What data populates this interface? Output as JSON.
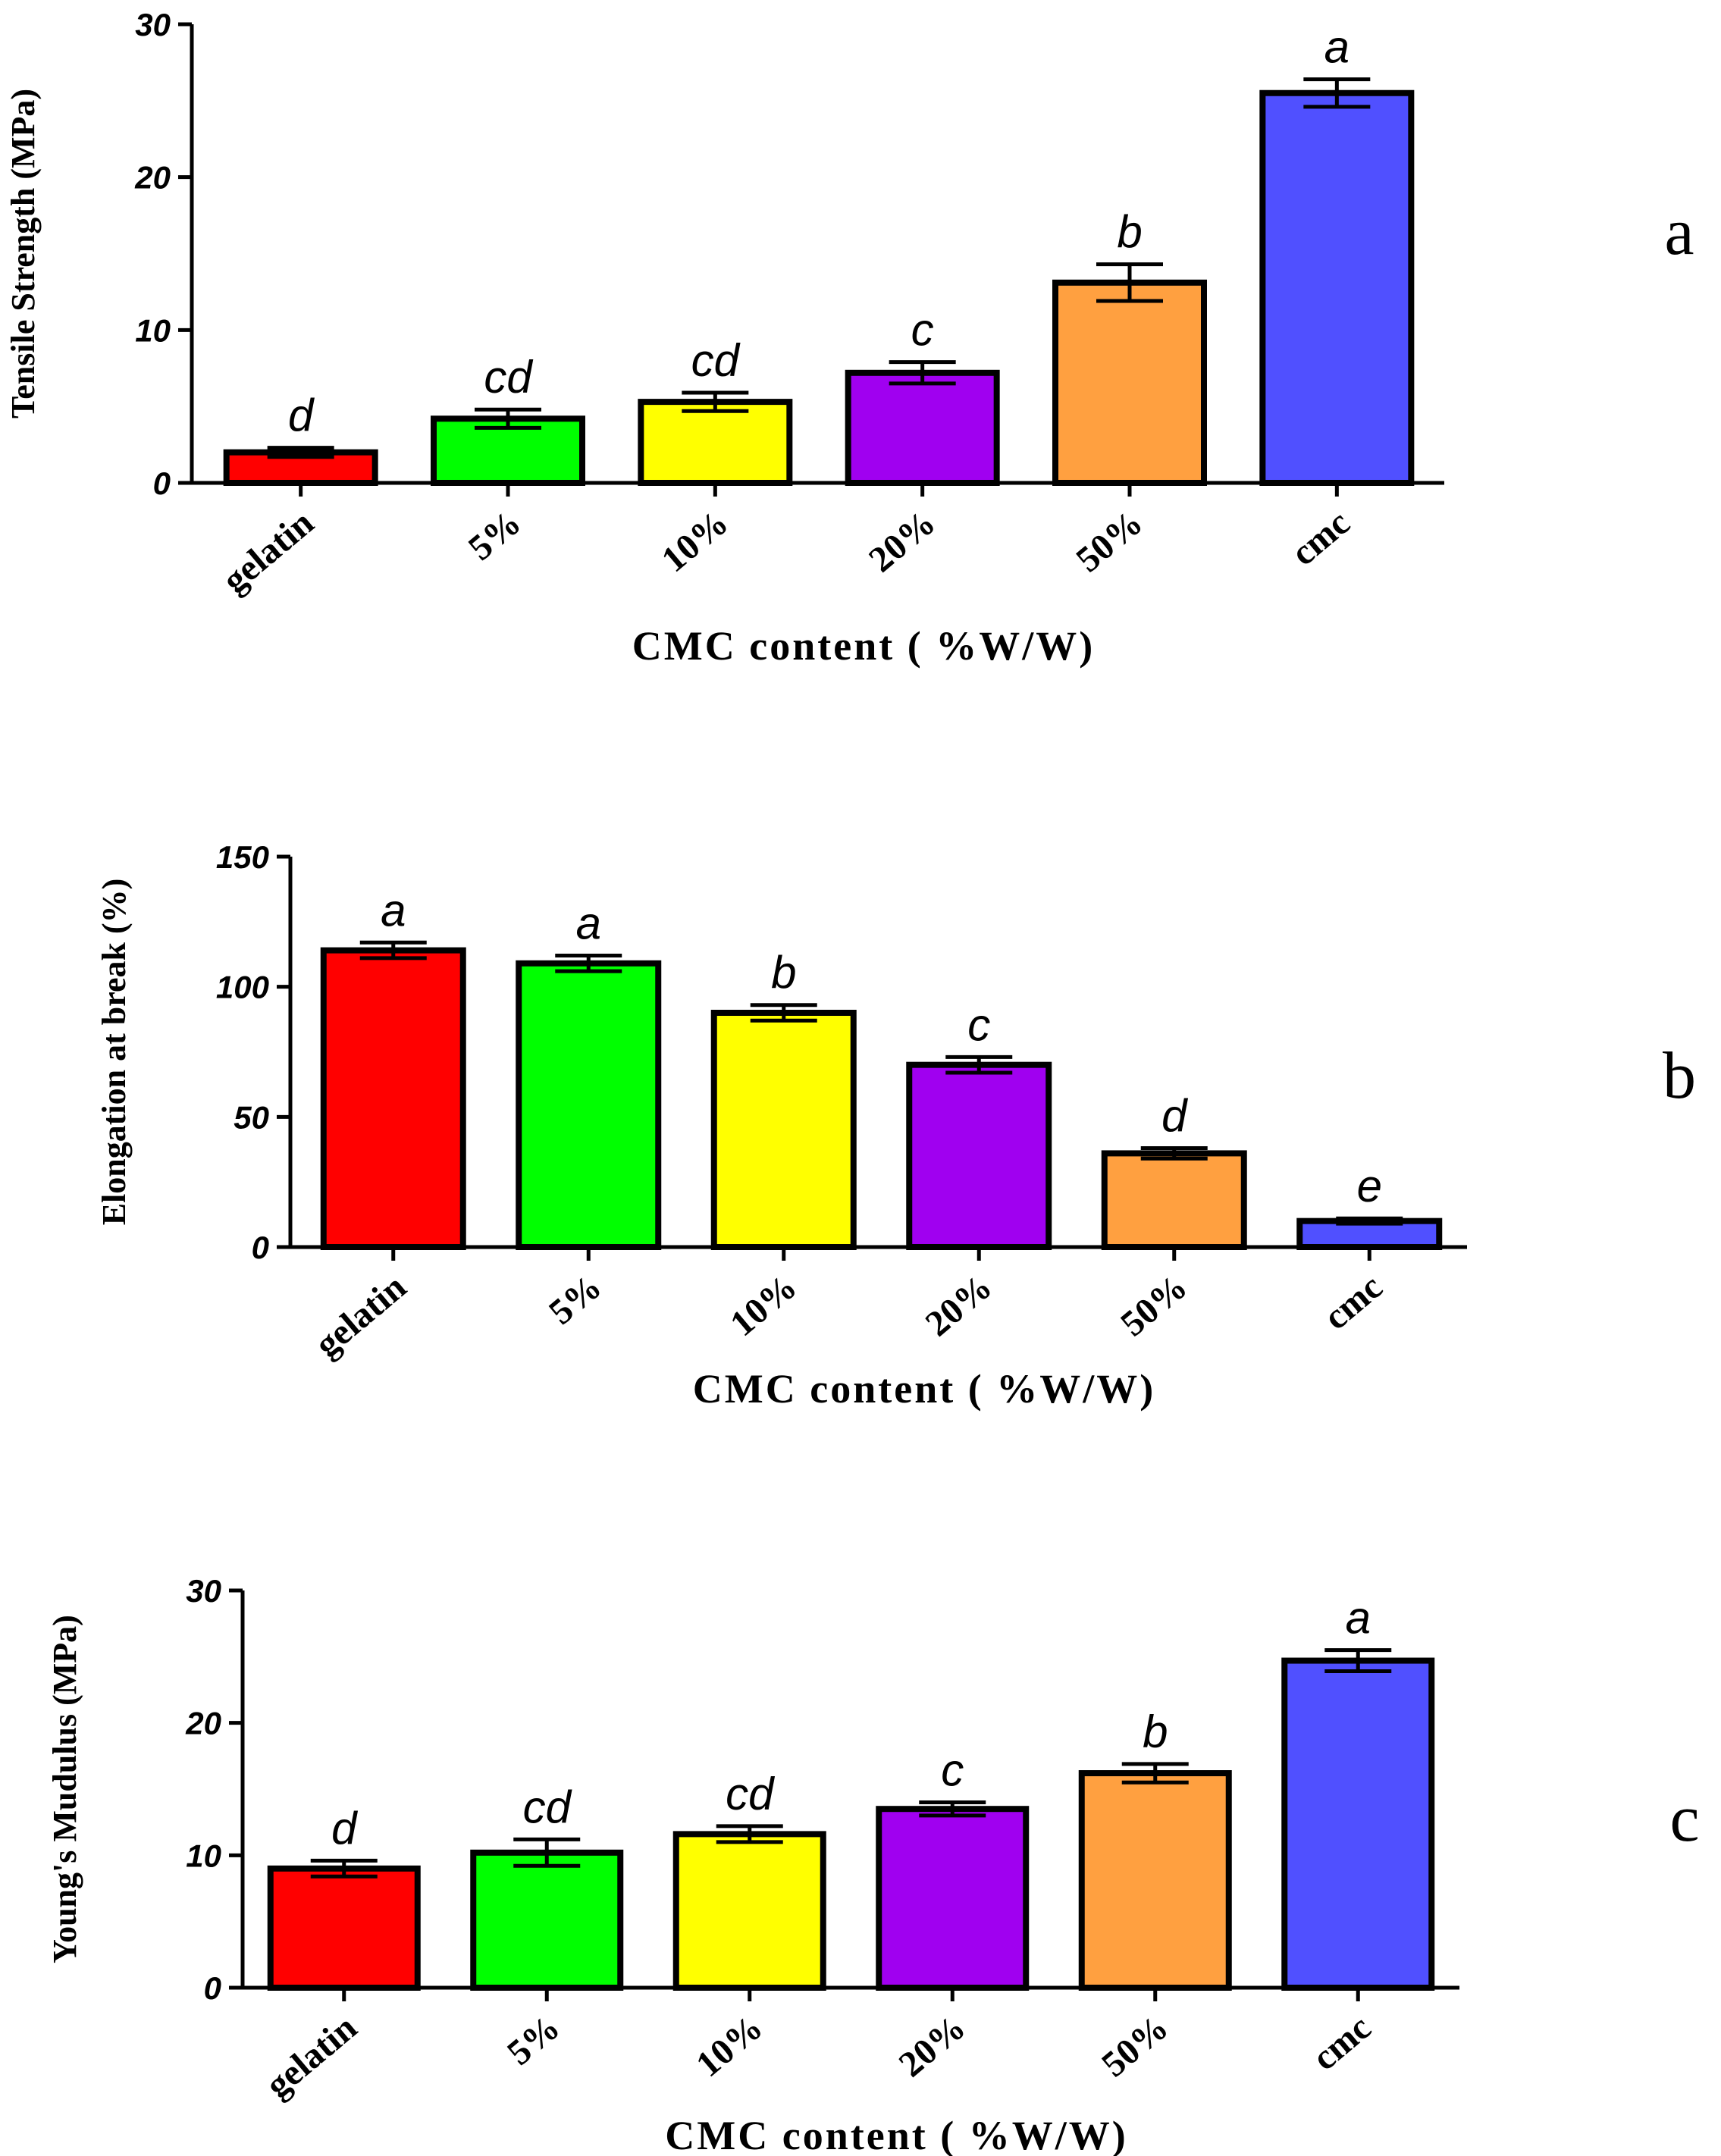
{
  "chart_data": [
    {
      "type": "bar",
      "panel_label": "a",
      "ylabel": "Tensile Strength (MPa)",
      "xlabel": "CMC content ( %W/W)",
      "categories": [
        "gelatin",
        "5%",
        "10%",
        "20%",
        "50%",
        "cmc"
      ],
      "values": [
        2,
        4.2,
        5.3,
        7.2,
        13.1,
        25.5
      ],
      "errors": [
        0.3,
        0.6,
        0.6,
        0.7,
        1.2,
        0.9
      ],
      "significance": [
        "d",
        "cd",
        "cd",
        "c",
        "b",
        "a"
      ],
      "ylim": [
        0,
        30
      ],
      "yticks": [
        "0",
        "10",
        "20",
        "30"
      ],
      "colors": [
        "#ff0000",
        "#00ff00",
        "#ffff00",
        "#a000f0",
        "#ffa040",
        "#5050ff"
      ]
    },
    {
      "type": "bar",
      "panel_label": "b",
      "ylabel": "Elongation at break (%)",
      "xlabel": "CMC content ( %W/W)",
      "categories": [
        "gelatin",
        "5%",
        "10%",
        "20%",
        "50%",
        "cmc"
      ],
      "values": [
        114,
        109,
        90,
        70,
        36,
        10
      ],
      "errors": [
        3,
        3,
        3,
        3,
        2,
        1
      ],
      "significance": [
        "a",
        "a",
        "b",
        "c",
        "d",
        "e"
      ],
      "ylim": [
        0,
        150
      ],
      "yticks": [
        "0",
        "50",
        "100",
        "150"
      ],
      "colors": [
        "#ff0000",
        "#00ff00",
        "#ffff00",
        "#a000f0",
        "#ffa040",
        "#5050ff"
      ]
    },
    {
      "type": "bar",
      "panel_label": "c",
      "ylabel": "Young's Mudulus (MPa)",
      "xlabel": "CMC content ( %W/W)",
      "categories": [
        "gelatin",
        "5%",
        "10%",
        "20%",
        "50%",
        "cmc"
      ],
      "values": [
        9,
        10.2,
        11.6,
        13.5,
        16.2,
        24.7
      ],
      "errors": [
        0.6,
        1,
        0.6,
        0.5,
        0.7,
        0.8
      ],
      "significance": [
        "d",
        "cd",
        "cd",
        "c",
        "b",
        "a"
      ],
      "ylim": [
        0,
        30
      ],
      "yticks": [
        "0",
        "10",
        "20",
        "30"
      ],
      "colors": [
        "#ff0000",
        "#00ff00",
        "#ffff00",
        "#a000f0",
        "#ffa040",
        "#5050ff"
      ]
    }
  ]
}
